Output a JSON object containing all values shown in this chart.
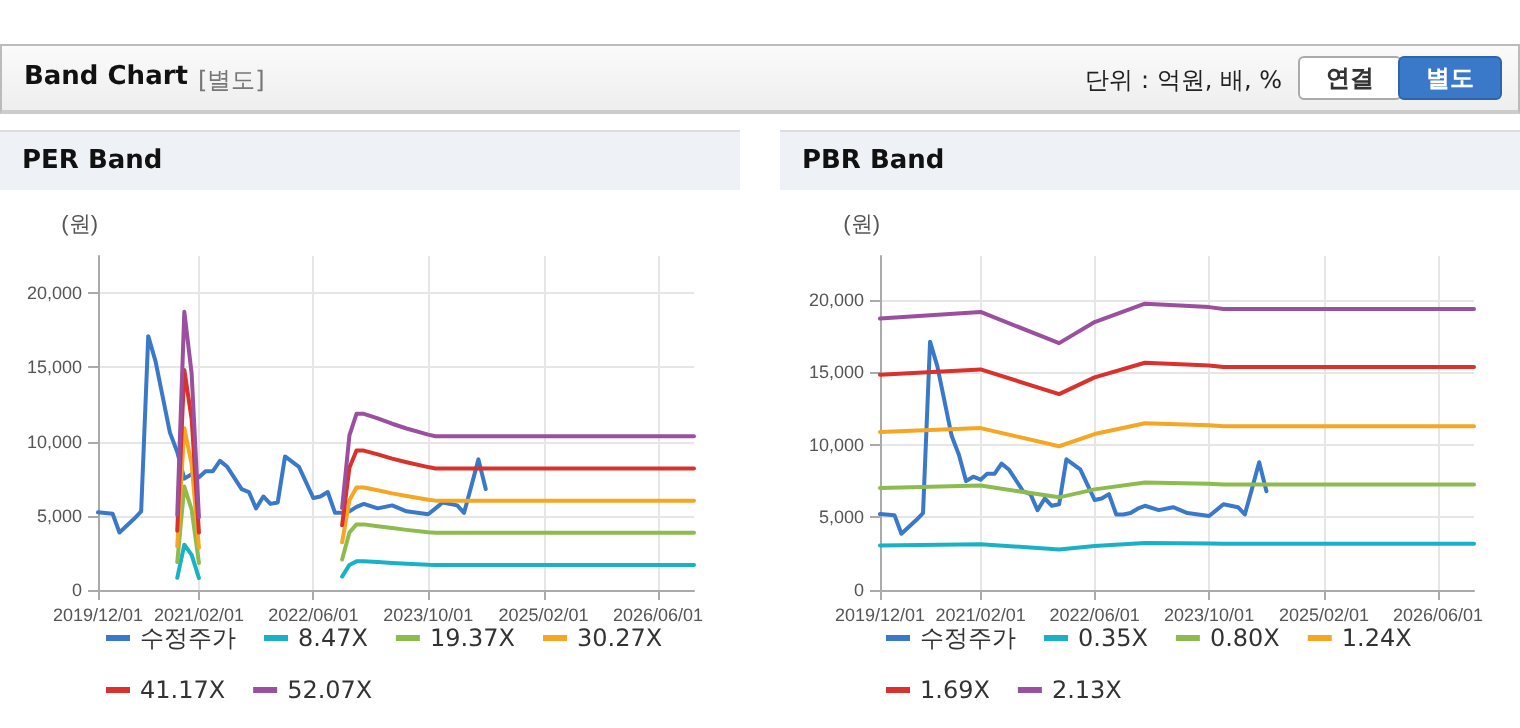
{
  "chart_data": [
    {
      "type": "line",
      "title": "PER Band",
      "ylabel": "(원)",
      "annotations": [
        "Band Chart",
        "[별도]",
        "단위 : 억원, 배, %",
        "연결",
        "별도"
      ],
      "x": [
        "2019-12",
        "2020-02",
        "2020-03",
        "2020-05",
        "2020-06",
        "2020-07",
        "2020-08",
        "2020-10",
        "2020-11",
        "2020-12",
        "2021-01",
        "2021-02",
        "2021-03",
        "2021-04",
        "2021-05",
        "2021-06",
        "2021-08",
        "2021-09",
        "2021-10",
        "2021-11",
        "2021-12",
        "2022-01",
        "2022-02",
        "2022-04",
        "2022-06",
        "2022-07",
        "2022-08",
        "2022-09",
        "2022-10",
        "2022-11",
        "2022-12",
        "2023-01",
        "2023-03",
        "2023-05",
        "2023-07",
        "2023-10",
        "2023-11",
        "2023-12",
        "2024-02",
        "2024-03",
        "2024-04",
        "2024-05",
        "2024-06",
        "2026-11"
      ],
      "series": [
        {
          "name": "수정주가",
          "color": "#3a78c9",
          "values": [
            5230,
            5140,
            3870,
            4780,
            5300,
            17100,
            15400,
            10600,
            9300,
            7500,
            7800,
            7600,
            8000,
            8000,
            8700,
            8300,
            6800,
            6600,
            5500,
            6300,
            5800,
            5900,
            9000,
            8300,
            6200,
            6300,
            6600,
            5200,
            5200,
            5300,
            5600,
            5800,
            5500,
            5700,
            5300,
            5100,
            5500,
            5900,
            5700,
            5200,
            7000,
            8800,
            6800,
            null
          ]
        },
        {
          "name": "8.47X",
          "color": "#1ab1c4",
          "values": [
            null,
            null,
            null,
            null,
            null,
            null,
            null,
            null,
            820,
            3050,
            2370,
            800,
            null,
            null,
            null,
            null,
            null,
            null,
            null,
            null,
            null,
            null,
            null,
            null,
            null,
            null,
            null,
            null,
            900,
            1690,
            1930,
            1930,
            1880,
            1820,
            1770,
            1700,
            1690,
            1690,
            1690,
            1690,
            1690,
            1690,
            1690,
            1690
          ]
        },
        {
          "name": "19.37X",
          "color": "#8dbb4d",
          "values": [
            null,
            null,
            null,
            null,
            null,
            null,
            null,
            null,
            1880,
            6970,
            5420,
            1820,
            null,
            null,
            null,
            null,
            null,
            null,
            null,
            null,
            null,
            null,
            null,
            null,
            null,
            null,
            null,
            null,
            2050,
            3870,
            4420,
            4420,
            4300,
            4170,
            4050,
            3890,
            3860,
            3860,
            3860,
            3860,
            3860,
            3860,
            3860,
            3860
          ]
        },
        {
          "name": "30.27X",
          "color": "#f5a623",
          "values": [
            null,
            null,
            null,
            null,
            null,
            null,
            null,
            null,
            2940,
            10900,
            8480,
            2850,
            null,
            null,
            null,
            null,
            null,
            null,
            null,
            null,
            null,
            null,
            null,
            null,
            null,
            null,
            null,
            null,
            3210,
            6050,
            6900,
            6900,
            6720,
            6510,
            6330,
            6080,
            6020,
            6020,
            6020,
            6020,
            6020,
            6020,
            6020,
            6020
          ]
        },
        {
          "name": "41.17X",
          "color": "#d9312b",
          "values": [
            null,
            null,
            null,
            null,
            null,
            null,
            null,
            null,
            3990,
            14820,
            11530,
            3870,
            null,
            null,
            null,
            null,
            null,
            null,
            null,
            null,
            null,
            null,
            null,
            null,
            null,
            null,
            null,
            null,
            4360,
            8230,
            9390,
            9390,
            9140,
            8850,
            8610,
            8280,
            8190,
            8190,
            8190,
            8190,
            8190,
            8190,
            8190,
            8190
          ]
        },
        {
          "name": "52.07X",
          "color": "#9b4f9f",
          "values": [
            null,
            null,
            null,
            null,
            null,
            null,
            null,
            null,
            5050,
            18750,
            14580,
            4900,
            null,
            null,
            null,
            null,
            null,
            null,
            null,
            null,
            null,
            null,
            null,
            null,
            null,
            null,
            null,
            null,
            5520,
            10410,
            11870,
            11870,
            11560,
            11200,
            10880,
            10470,
            10360,
            10360,
            10360,
            10360,
            10360,
            10360,
            10360,
            10360
          ]
        }
      ],
      "xlim": [
        "2019-12-01",
        "2026-11-01"
      ],
      "xticks": [
        {
          "value": "2019-12-01",
          "label": "2019/12/01"
        },
        {
          "value": "2021-02-01",
          "label": "2021/02/01"
        },
        {
          "value": "2022-06-01",
          "label": "2022/06/01"
        },
        {
          "value": "2023-10-01",
          "label": "2023/10/01"
        },
        {
          "value": "2025-02-01",
          "label": "2025/02/01"
        },
        {
          "value": "2026-06-01",
          "label": "2026/06/01"
        }
      ],
      "ylim": [
        0,
        22500
      ],
      "yticks": [
        {
          "value": 0,
          "label": "0"
        },
        {
          "value": 5000,
          "label": "5,000"
        },
        {
          "value": 10000,
          "label": "10,000"
        },
        {
          "value": 15000,
          "label": "15,000"
        },
        {
          "value": 20000,
          "label": "20,000"
        }
      ],
      "grid": true,
      "legend": "bottom",
      "marker": "none",
      "line_style": "solid"
    },
    {
      "type": "line",
      "title": "PBR Band",
      "ylabel": "(원)",
      "x": [
        "2019-12",
        "2021-02",
        "2022-01",
        "2022-06",
        "2023-01",
        "2023-10",
        "2023-12",
        "2026-11"
      ],
      "series": [
        {
          "name": "수정주가",
          "color": "#3a78c9",
          "x": [
            "2019-12",
            "2020-02",
            "2020-03",
            "2020-05",
            "2020-06",
            "2020-07",
            "2020-08",
            "2020-10",
            "2020-11",
            "2020-12",
            "2021-01",
            "2021-02",
            "2021-03",
            "2021-04",
            "2021-05",
            "2021-06",
            "2021-08",
            "2021-09",
            "2021-10",
            "2021-11",
            "2021-12",
            "2022-01",
            "2022-02",
            "2022-04",
            "2022-06",
            "2022-07",
            "2022-08",
            "2022-09",
            "2022-10",
            "2022-11",
            "2022-12",
            "2023-01",
            "2023-03",
            "2023-05",
            "2023-07",
            "2023-10",
            "2023-11",
            "2023-12",
            "2024-02",
            "2024-03",
            "2024-04",
            "2024-05",
            "2024-06"
          ],
          "values": [
            5230,
            5140,
            3870,
            4780,
            5300,
            17100,
            15400,
            10600,
            9300,
            7500,
            7800,
            7600,
            8000,
            8000,
            8700,
            8300,
            6800,
            6600,
            5500,
            6300,
            5800,
            5900,
            9000,
            8300,
            6200,
            6300,
            6600,
            5200,
            5200,
            5300,
            5600,
            5800,
            5500,
            5700,
            5300,
            5100,
            5500,
            5900,
            5700,
            5200,
            7000,
            8800,
            6800
          ]
        },
        {
          "name": "0.35X",
          "color": "#1ab1c4",
          "values": [
            3070,
            3150,
            2790,
            3030,
            3240,
            3200,
            3180,
            3180
          ]
        },
        {
          "name": "0.80X",
          "color": "#8dbb4d",
          "values": [
            7020,
            7190,
            6380,
            6930,
            7410,
            7320,
            7270,
            7270
          ]
        },
        {
          "name": "1.24X",
          "color": "#f5a623",
          "values": [
            10880,
            11150,
            9900,
            10740,
            11480,
            11340,
            11270,
            11270
          ]
        },
        {
          "name": "1.69X",
          "color": "#d9312b",
          "values": [
            14830,
            15190,
            13490,
            14640,
            15650,
            15460,
            15350,
            15350
          ]
        },
        {
          "name": "2.13X",
          "color": "#9b4f9f",
          "values": [
            18690,
            19150,
            17000,
            18450,
            19720,
            19480,
            19350,
            19350
          ]
        }
      ],
      "xlim": [
        "2019-12-01",
        "2026-11-01"
      ],
      "xticks": [
        {
          "value": "2019-12-01",
          "label": "2019/12/01"
        },
        {
          "value": "2021-02-01",
          "label": "2021/02/01"
        },
        {
          "value": "2022-06-01",
          "label": "2022/06/01"
        },
        {
          "value": "2023-10-01",
          "label": "2023/10/01"
        },
        {
          "value": "2025-02-01",
          "label": "2025/02/01"
        },
        {
          "value": "2026-06-01",
          "label": "2026/06/01"
        }
      ],
      "ylim": [
        0,
        23000
      ],
      "yticks": [
        {
          "value": 0,
          "label": "0"
        },
        {
          "value": 5000,
          "label": "5,000"
        },
        {
          "value": 10000,
          "label": "10,000"
        },
        {
          "value": 15000,
          "label": "15,000"
        },
        {
          "value": 20000,
          "label": "20,000"
        }
      ],
      "grid": true,
      "legend": "bottom",
      "marker": "none",
      "line_style": "solid"
    }
  ]
}
